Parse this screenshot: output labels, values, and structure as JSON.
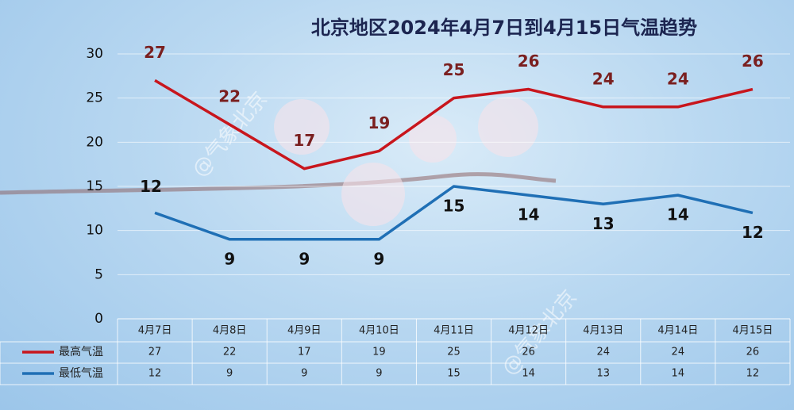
{
  "chart_data": {
    "type": "line",
    "title": "北京地区2024年4月7日到4月15日气温趋势",
    "watermark": "@气象北京",
    "categories": [
      "4月7日",
      "4月8日",
      "4月9日",
      "4月10日",
      "4月11日",
      "4月12日",
      "4月13日",
      "4月14日",
      "4月15日"
    ],
    "series": [
      {
        "name": "最高气温",
        "color": "#c8161d",
        "values": [
          27,
          22,
          17,
          19,
          25,
          26,
          24,
          24,
          26
        ]
      },
      {
        "name": "最低气温",
        "color": "#1f6fb5",
        "values": [
          12,
          9,
          9,
          9,
          15,
          14,
          13,
          14,
          12
        ]
      }
    ],
    "ylim": [
      0,
      30
    ],
    "yticks": [
      0,
      5,
      10,
      15,
      20,
      25,
      30
    ],
    "grid": true
  }
}
